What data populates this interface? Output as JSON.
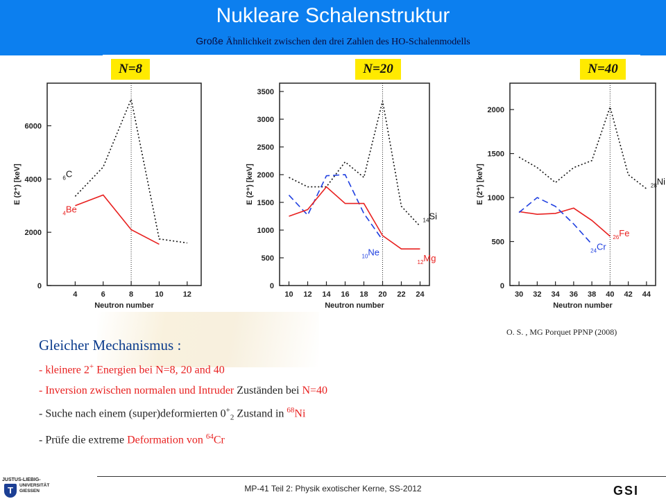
{
  "header": {
    "title": "Nukleare Schalenstruktur",
    "subtitle_lead": "Große",
    "subtitle_rest": " Ähnlichkeit zwischen den drei Zahlen des HO-Schalenmodells"
  },
  "colors": {
    "header_bg": "#0c7fef",
    "label_bg": "#ffea00",
    "red": "#e8201f",
    "blue": "#1f3fe0",
    "black": "#111111"
  },
  "chart_data": [
    {
      "type": "line",
      "label": "N=8",
      "xlabel": "Neutron number",
      "ylabel": "E (2⁺) [keV]",
      "xlim": [
        2,
        13
      ],
      "ylim": [
        0,
        7600
      ],
      "xticks": [
        4,
        6,
        8,
        10,
        12
      ],
      "yticks": [
        0,
        2000,
        4000,
        6000
      ],
      "vline": 8,
      "series": [
        {
          "name": "C",
          "mass": "6",
          "color": "#111111",
          "dash": "dotdash",
          "x": [
            4,
            6,
            8,
            10,
            12
          ],
          "values": [
            3350,
            4450,
            7000,
            1750,
            1600
          ]
        },
        {
          "name": "Be",
          "mass": "4",
          "color": "#e8201f",
          "dash": "solid",
          "x": [
            4,
            6,
            8,
            10
          ],
          "values": [
            3000,
            3400,
            2100,
            1550
          ]
        }
      ]
    },
    {
      "type": "line",
      "label": "N=20",
      "xlabel": "Neutron number",
      "ylabel": "E (2⁺) [keV]",
      "xlim": [
        9,
        25
      ],
      "ylim": [
        0,
        3650
      ],
      "xticks": [
        10,
        12,
        14,
        16,
        18,
        20,
        22,
        24
      ],
      "yticks": [
        0,
        500,
        1000,
        1500,
        2000,
        2500,
        3000,
        3500
      ],
      "vline": 20,
      "series": [
        {
          "name": "Si",
          "mass": "14",
          "color": "#111111",
          "dash": "dotdash",
          "x": [
            10,
            12,
            14,
            16,
            18,
            20,
            22,
            24
          ],
          "values": [
            1950,
            1780,
            1780,
            2230,
            1950,
            3330,
            1430,
            1070
          ]
        },
        {
          "name": "Ne",
          "mass": "10",
          "color": "#1f3fe0",
          "dash": "dash",
          "x": [
            10,
            12,
            14,
            16,
            18,
            20
          ],
          "values": [
            1630,
            1270,
            1980,
            2000,
            1300,
            820
          ]
        },
        {
          "name": "Mg",
          "mass": "12",
          "color": "#e8201f",
          "dash": "solid",
          "x": [
            10,
            12,
            14,
            16,
            18,
            20,
            22,
            24
          ],
          "values": [
            1250,
            1370,
            1780,
            1480,
            1480,
            900,
            660,
            660
          ]
        }
      ]
    },
    {
      "type": "line",
      "label": "N=40",
      "xlabel": "Neutron number",
      "ylabel": "E (2⁺) [keV]",
      "xlim": [
        29,
        45
      ],
      "ylim": [
        0,
        2300
      ],
      "xticks": [
        30,
        32,
        34,
        36,
        38,
        40,
        42,
        44
      ],
      "yticks": [
        0,
        500,
        1000,
        1500,
        2000
      ],
      "vline": 40,
      "series": [
        {
          "name": "Ni",
          "mass": "28",
          "color": "#111111",
          "dash": "dotdash",
          "x": [
            30,
            32,
            34,
            36,
            38,
            40,
            42,
            44
          ],
          "values": [
            1460,
            1340,
            1170,
            1340,
            1420,
            2030,
            1260,
            1100
          ]
        },
        {
          "name": "Fe",
          "mass": "26",
          "color": "#e8201f",
          "dash": "solid",
          "x": [
            30,
            32,
            34,
            36,
            38,
            40
          ],
          "values": [
            840,
            810,
            820,
            880,
            740,
            560
          ]
        },
        {
          "name": "Cr",
          "mass": "24",
          "color": "#1f3fe0",
          "dash": "dash",
          "x": [
            30,
            32,
            34,
            36,
            38
          ],
          "values": [
            830,
            1000,
            900,
            700,
            470
          ]
        }
      ]
    }
  ],
  "citation": "O. S. , MG Porquet PPNP (2008)",
  "mechanism": {
    "title": "Gleicher Mechanismus :",
    "b1_a": "- kleinere 2",
    "b1_sup": "+",
    "b1_b": " Energien bei N=8, 20 and 40",
    "b2_a": "- Inversion zwischen ",
    "b2_b": "normalen und Intruder",
    "b2_c": " Zuständen bei ",
    "b2_d": "N=40",
    "b3_a": "- Suche nach einem (super)deformierten 0",
    "b3_sup": "+",
    "b3_sub": "2",
    "b3_b": " Zustand in ",
    "b3_sup2": "68",
    "b3_c": "Ni",
    "b4_a": "- Prüfe die extreme ",
    "b4_b": "Deformation von ",
    "b4_sup": "64",
    "b4_c": "Cr"
  },
  "footer": {
    "text": "MP-41 Teil 2: Physik exotischer Kerne, SS-2012",
    "uni_line1": "JUSTUS-LIEBIG-",
    "uni_line2": "UNIVERSITÄT",
    "uni_line3": "GIESSEN",
    "uni_emblem": "T",
    "gsi": "GSI"
  }
}
